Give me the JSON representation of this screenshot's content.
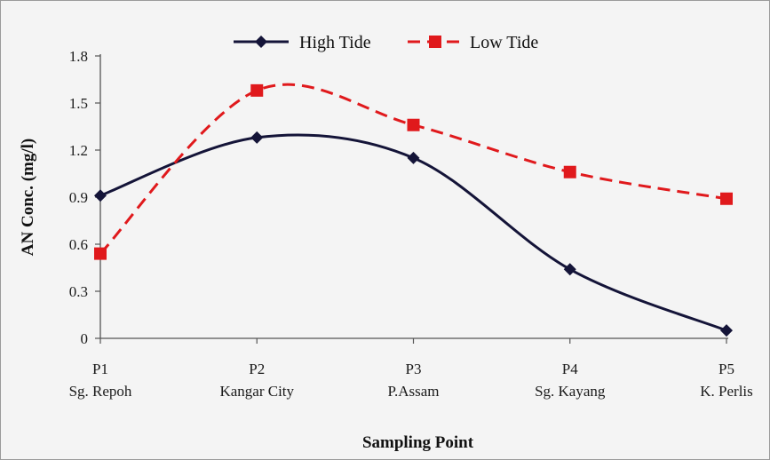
{
  "chart_data": {
    "type": "line",
    "title": "",
    "xlabel": "Sampling Point",
    "ylabel": "AN Conc. (mg/l)",
    "ylim": [
      0,
      1.8
    ],
    "yticks": [
      "0",
      "0.3",
      "0.6",
      "0.9",
      "1.2",
      "1.5",
      "1.8"
    ],
    "categories": [
      {
        "code": "P1",
        "name": "Sg. Repoh"
      },
      {
        "code": "P2",
        "name": "Kangar City"
      },
      {
        "code": "P3",
        "name": "P.Assam"
      },
      {
        "code": "P4",
        "name": "Sg. Kayang"
      },
      {
        "code": "P5",
        "name": "K. Perlis"
      }
    ],
    "grid": false,
    "legend_position": "top",
    "smoothed": true,
    "series": [
      {
        "name": "High Tide",
        "values": [
          0.91,
          1.28,
          1.15,
          0.44,
          0.05
        ],
        "color": "#141438",
        "marker": "diamond",
        "dash": "solid"
      },
      {
        "name": "Low Tide",
        "values": [
          0.54,
          1.58,
          1.36,
          1.06,
          0.89
        ],
        "color": "#e0191c",
        "marker": "square",
        "dash": "dashed"
      }
    ]
  }
}
